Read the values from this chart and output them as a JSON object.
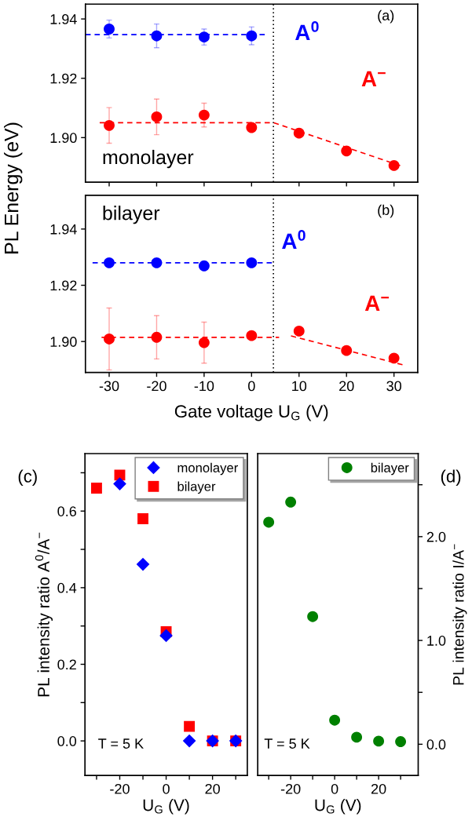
{
  "chart_data": [
    {
      "type": "scatter",
      "ylabel": "PL Energy (eV)",
      "xlim": [
        -35,
        35
      ],
      "ylim": [
        1.885,
        1.945
      ],
      "xticks": [
        -30,
        -20,
        -10,
        0,
        10,
        20,
        30
      ],
      "yticks": [
        {
          "value": 1.9,
          "label": "1.90"
        },
        {
          "value": 1.92,
          "label": "1.92"
        },
        {
          "value": 1.94,
          "label": "1.94"
        }
      ],
      "tick_labels": "y",
      "marker": "circle",
      "series": [
        {
          "name": "A$^{0}$",
          "color": "#0000ff",
          "x": [
            -30,
            -20,
            -10,
            0
          ],
          "values": [
            1.9366,
            1.9343,
            1.9339,
            1.9343
          ],
          "errors": [
            0.003,
            0.004,
            0.0027,
            0.003
          ]
        },
        {
          "type": "line",
          "line_style": "dashed",
          "marker": "none",
          "color": "#0000ff",
          "x": [
            -35,
            3.2
          ],
          "values": [
            1.9347,
            1.9347
          ]
        },
        {
          "name": "A$^{−}$",
          "color": "#ff0000",
          "x": [
            -30,
            -20,
            -10,
            0,
            10,
            20,
            30
          ],
          "values": [
            1.9041,
            1.907,
            1.9076,
            1.9034,
            1.9015,
            1.8955,
            1.8906
          ],
          "errors": [
            0.006,
            0.006,
            0.004,
            null,
            null,
            null,
            null
          ]
        },
        {
          "type": "line",
          "line_style": "dashed",
          "marker": "none",
          "color": "#ff0000",
          "x": [
            -32,
            4.7,
            31.4
          ],
          "values": [
            1.905,
            1.905,
            1.8905
          ]
        }
      ],
      "ref_lines": [
        {
          "axis": "x",
          "value": 4.6,
          "color": "#000000",
          "line_style": "dotted"
        }
      ],
      "annotations": [
        "(a)",
        "monolayer"
      ]
    },
    {
      "type": "scatter",
      "xlabel": "Gate voltage U$_{G}$ (V)",
      "xlim": [
        -35,
        35
      ],
      "ylim": [
        1.889,
        1.952
      ],
      "xticks": [
        -30,
        -20,
        -10,
        0,
        10,
        20,
        30
      ],
      "yticks": [
        {
          "value": 1.9,
          "label": "1.90"
        },
        {
          "value": 1.92,
          "label": "1.92"
        },
        {
          "value": 1.94,
          "label": "1.94"
        }
      ],
      "marker": "circle",
      "series": [
        {
          "name": "A$^{0}$",
          "color": "#0000ff",
          "x": [
            -30,
            -20,
            -10,
            0
          ],
          "values": [
            1.928,
            1.928,
            1.9269,
            1.928
          ]
        },
        {
          "type": "line",
          "line_style": "dashed",
          "marker": "none",
          "color": "#0000ff",
          "x": [
            -33.5,
            4.4
          ],
          "values": [
            1.928,
            1.928
          ]
        },
        {
          "name": "A$^{−}$",
          "color": "#ff0000",
          "x": [
            -30,
            -20,
            -10,
            0,
            10,
            20,
            30
          ],
          "values": [
            1.9009,
            1.9015,
            1.8996,
            1.9021,
            1.9037,
            1.8968,
            1.8941
          ],
          "errors": [
            0.011,
            0.0077,
            0.0073,
            null,
            null,
            null,
            null
          ]
        },
        {
          "type": "line",
          "line_style": "dashed",
          "marker": "none",
          "color": "#ff0000",
          "x": [
            -31.6,
            5.8
          ],
          "values": [
            1.9015,
            1.9015
          ]
        },
        {
          "type": "line",
          "line_style": "dashed",
          "marker": "none",
          "color": "#ff0000",
          "x": [
            8.3,
            31.9
          ],
          "values": [
            1.902,
            1.8917
          ]
        }
      ],
      "ref_lines": [
        {
          "axis": "x",
          "value": 4.6,
          "color": "#000000",
          "line_style": "dotted"
        }
      ],
      "annotations": [
        "(b)",
        "bilayer"
      ]
    },
    {
      "type": "scatter",
      "xlabel": "U$_{G}$ (V)",
      "ylabel": "PL intensity ratio A$^{0}$/A$^{−}$",
      "xlim": [
        -35,
        35
      ],
      "ylim": [
        -0.09,
        0.75
      ],
      "xticks": [
        {
          "value": -30,
          "label": null
        },
        -20,
        {
          "value": -10,
          "label": null
        },
        0,
        {
          "value": 10,
          "label": null
        },
        20,
        {
          "value": 30,
          "label": null
        }
      ],
      "yticks": [
        {
          "value": 0,
          "label": "0.0"
        },
        {
          "value": 0.1,
          "label": null
        },
        {
          "value": 0.2,
          "label": "0.2"
        },
        {
          "value": 0.3,
          "label": null
        },
        {
          "value": 0.4,
          "label": "0.4"
        },
        {
          "value": 0.5,
          "label": null
        },
        {
          "value": 0.6,
          "label": "0.6"
        },
        {
          "value": 0.7,
          "label": null
        }
      ],
      "legend": "top right",
      "series": [
        {
          "name": "bilayer",
          "marker": "square",
          "color": "#ff0000",
          "x": [
            -30,
            -20,
            -10,
            0,
            10,
            20,
            30
          ],
          "values": [
            0.66,
            0.694,
            0.58,
            0.285,
            0.038,
            0,
            0
          ]
        },
        {
          "name": "monolayer",
          "marker": "diamond",
          "color": "#0000ff",
          "x": [
            -20,
            -10,
            0,
            10,
            20,
            30
          ],
          "values": [
            0.671,
            0.461,
            0.275,
            0,
            0,
            0
          ]
        }
      ],
      "annotations": [
        "(c)",
        "T = 5 K"
      ]
    },
    {
      "type": "scatter",
      "xlabel": "U$_{G}$ (V)",
      "y2label": "PL intensity ratio I/A$^{−}$",
      "xlim": [
        -35,
        38
      ],
      "y2lim": [
        -0.3,
        2.8
      ],
      "xticks": [
        {
          "value": -30,
          "label": null
        },
        -20,
        {
          "value": -10,
          "label": null
        },
        0,
        {
          "value": 10,
          "label": null
        },
        20,
        {
          "value": 30,
          "label": null
        }
      ],
      "y2ticks": [
        {
          "value": 0,
          "label": "0.0"
        },
        {
          "value": 0.5,
          "label": null
        },
        {
          "value": 1,
          "label": "1.0"
        },
        {
          "value": 1.5,
          "label": null
        },
        {
          "value": 2,
          "label": "2.0"
        },
        {
          "value": 2.5,
          "label": null
        }
      ],
      "legend": "top right",
      "marker": "circle",
      "series": [
        {
          "name": "bilayer",
          "axis": "y2",
          "color": "#008000",
          "x": [
            -30,
            -20,
            -10,
            0,
            10,
            20,
            30
          ],
          "values": [
            2.139,
            2.333,
            1.23,
            0.232,
            0.068,
            0.03,
            0.025
          ]
        }
      ],
      "annotations": [
        "(d)",
        "T = 5 K"
      ]
    }
  ]
}
